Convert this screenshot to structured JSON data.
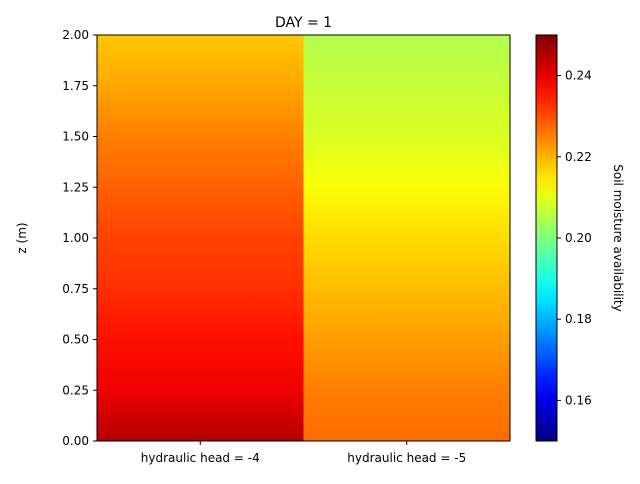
{
  "chart_data": {
    "type": "heatmap",
    "title": "DAY = 1",
    "ylabel": "z (m)",
    "xlabel": "",
    "ylim": [
      0,
      2
    ],
    "y_ticks": [
      "0.00",
      "0.25",
      "0.50",
      "0.75",
      "1.00",
      "1.25",
      "1.50",
      "1.75",
      "2.00"
    ],
    "categories": [
      "hydraulic head = -4",
      "hydraulic head = -5"
    ],
    "columns": [
      {
        "z": [
          0,
          0.25,
          0.5,
          0.75,
          1.0,
          1.25,
          1.5,
          1.75,
          2.0
        ],
        "values": [
          0.245,
          0.239,
          0.236,
          0.233,
          0.231,
          0.228,
          0.225,
          0.221,
          0.218
        ]
      },
      {
        "z": [
          0,
          0.25,
          0.5,
          0.75,
          1.0,
          1.25,
          1.5,
          1.75,
          2.0
        ],
        "values": [
          0.227,
          0.225,
          0.222,
          0.219,
          0.216,
          0.212,
          0.209,
          0.207,
          0.205
        ]
      }
    ],
    "colorbar": {
      "label": "Soil moisture availability",
      "range": [
        0.15,
        0.25
      ],
      "ticks": [
        "0.16",
        "0.18",
        "0.20",
        "0.22",
        "0.24"
      ],
      "colormap": "jet"
    },
    "grid": false,
    "legend": "none"
  }
}
